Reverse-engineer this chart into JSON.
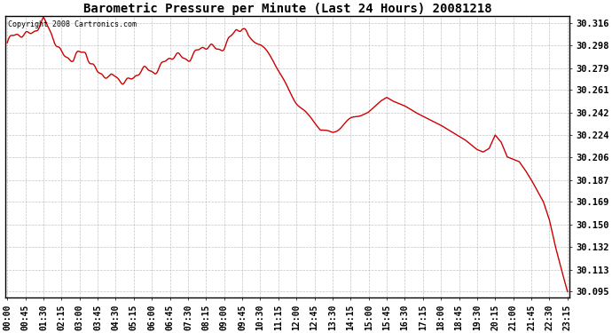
{
  "title": "Barometric Pressure per Minute (Last 24 Hours) 20081218",
  "copyright": "Copyright 2008 Cartronics.com",
  "line_color": "#cc0000",
  "bg_color": "#ffffff",
  "plot_bg_color": "#ffffff",
  "grid_color": "#aaaaaa",
  "yticks": [
    30.095,
    30.113,
    30.132,
    30.15,
    30.169,
    30.187,
    30.206,
    30.224,
    30.242,
    30.261,
    30.279,
    30.298,
    30.316
  ],
  "ylim": [
    30.09,
    30.322
  ],
  "xtick_labels": [
    "00:00",
    "00:45",
    "01:30",
    "02:15",
    "03:00",
    "03:45",
    "04:30",
    "05:15",
    "06:00",
    "06:45",
    "07:30",
    "08:15",
    "09:00",
    "09:45",
    "10:30",
    "11:15",
    "12:00",
    "12:45",
    "13:30",
    "14:15",
    "15:00",
    "15:45",
    "16:30",
    "17:15",
    "18:00",
    "18:45",
    "19:30",
    "20:15",
    "21:00",
    "21:45",
    "22:30",
    "23:15"
  ],
  "ctrl_x": [
    0,
    45,
    90,
    110,
    135,
    165,
    195,
    225,
    255,
    270,
    285,
    315,
    330,
    360,
    390,
    420,
    450,
    480,
    510,
    540,
    555,
    570,
    585,
    600,
    630,
    660,
    690,
    720,
    750,
    765,
    780,
    810,
    840,
    870,
    900,
    930,
    945,
    960,
    990,
    1020,
    1050,
    1080,
    1110,
    1140,
    1155,
    1170,
    1185,
    1200,
    1215,
    1230,
    1245,
    1260,
    1275,
    1290,
    1305,
    1320,
    1335,
    1350,
    1365,
    1380,
    1395
  ],
  "ctrl_y": [
    30.3,
    30.308,
    30.316,
    30.306,
    30.294,
    30.285,
    30.292,
    30.278,
    30.268,
    30.271,
    30.271,
    30.271,
    30.274,
    30.278,
    30.284,
    30.287,
    30.29,
    30.293,
    30.296,
    30.299,
    30.302,
    30.308,
    30.311,
    30.308,
    30.298,
    30.285,
    30.269,
    30.252,
    30.238,
    30.233,
    30.228,
    30.228,
    30.233,
    30.238,
    30.243,
    30.252,
    30.255,
    30.252,
    30.248,
    30.242,
    30.237,
    30.232,
    30.226,
    30.22,
    30.216,
    30.212,
    30.21,
    30.213,
    30.224,
    30.218,
    30.206,
    30.204,
    30.202,
    30.195,
    30.187,
    30.178,
    30.169,
    30.154,
    30.132,
    30.113,
    30.095
  ]
}
